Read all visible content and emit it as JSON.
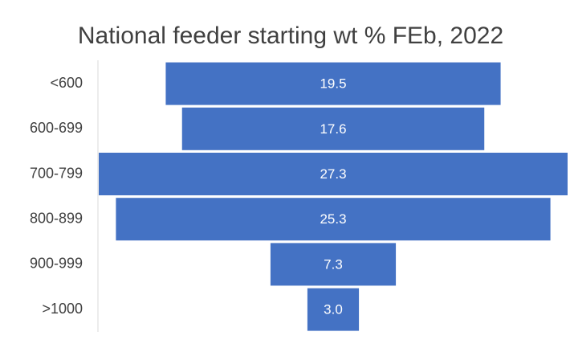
{
  "chart_data": {
    "type": "funnel",
    "title": "National feeder starting wt % FEb, 2022",
    "categories": [
      "<600",
      "600-699",
      "700-799",
      "800-899",
      "900-999",
      ">1000"
    ],
    "values": [
      19.5,
      17.6,
      27.3,
      25.3,
      7.3,
      3.0
    ],
    "value_labels": [
      "19.5",
      "17.6",
      "27.3",
      "25.3",
      "7.3",
      "3.0"
    ],
    "color": "#4472c4"
  }
}
